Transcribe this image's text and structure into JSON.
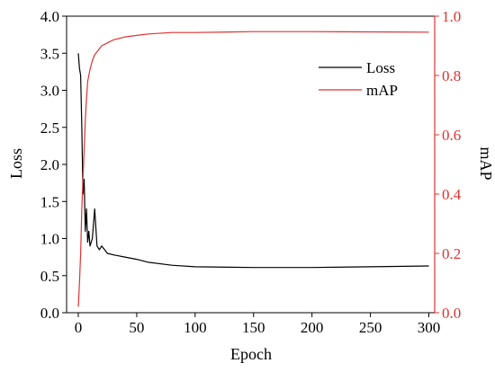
{
  "chart_data": {
    "type": "line",
    "title": "",
    "xlabel": "Epoch",
    "ylabel_left": "Loss",
    "ylabel_right": "mAP",
    "xlim": [
      -10,
      305
    ],
    "ylim_left": [
      0,
      4
    ],
    "ylim_right": [
      0,
      1
    ],
    "x_ticks": [
      "0",
      "50",
      "100",
      "150",
      "200",
      "250",
      "300"
    ],
    "y_left_ticks": [
      "0.0",
      "0.5",
      "1.0",
      "1.5",
      "2.0",
      "2.5",
      "3.0",
      "3.5",
      "4.0"
    ],
    "y_right_ticks": [
      "0.0",
      "0.2",
      "0.4",
      "0.6",
      "0.8",
      "1.0"
    ],
    "grid": false,
    "legend_position": "top-right",
    "colors": {
      "loss": "#000000",
      "map": "#e03131"
    },
    "series": [
      {
        "name": "Loss",
        "axis": "left",
        "x": [
          0,
          1,
          2,
          3,
          4,
          5,
          6,
          7,
          8,
          9,
          10,
          12,
          14,
          16,
          18,
          20,
          25,
          30,
          40,
          50,
          60,
          80,
          100,
          150,
          200,
          250,
          300
        ],
        "y": [
          3.5,
          3.3,
          3.2,
          2.5,
          1.6,
          1.8,
          1.1,
          1.4,
          0.95,
          1.1,
          0.9,
          1.0,
          1.4,
          0.9,
          0.85,
          0.9,
          0.8,
          0.78,
          0.75,
          0.72,
          0.68,
          0.64,
          0.62,
          0.61,
          0.61,
          0.62,
          0.63
        ]
      },
      {
        "name": "mAP",
        "axis": "right",
        "x": [
          0,
          1,
          2,
          3,
          4,
          5,
          6,
          7,
          8,
          9,
          10,
          12,
          14,
          16,
          18,
          20,
          25,
          30,
          40,
          50,
          60,
          80,
          100,
          150,
          200,
          250,
          300
        ],
        "y": [
          0.02,
          0.1,
          0.2,
          0.35,
          0.45,
          0.55,
          0.65,
          0.72,
          0.78,
          0.8,
          0.82,
          0.85,
          0.87,
          0.88,
          0.89,
          0.9,
          0.91,
          0.92,
          0.93,
          0.935,
          0.94,
          0.945,
          0.945,
          0.948,
          0.948,
          0.947,
          0.946
        ]
      }
    ]
  }
}
